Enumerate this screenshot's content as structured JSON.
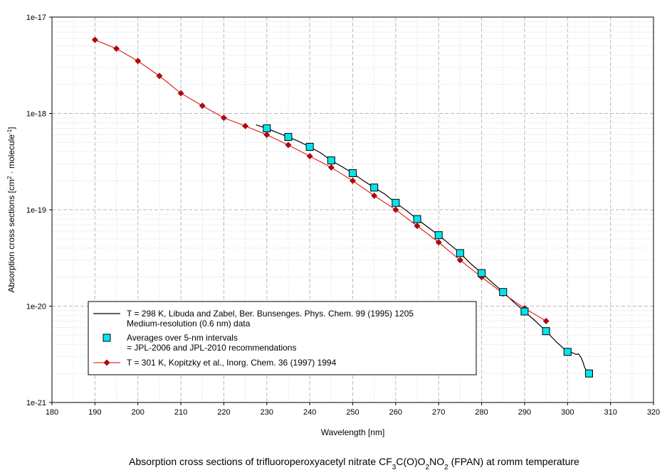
{
  "chart_data": {
    "type": "line",
    "caption_parts": [
      {
        "t": "Absorption cross sections of trifluoroperoxyacetyl nitrate CF",
        "s": ""
      },
      {
        "t": "3",
        "s": "sub"
      },
      {
        "t": "C(O)O",
        "s": ""
      },
      {
        "t": "2",
        "s": "sub"
      },
      {
        "t": "NO",
        "s": ""
      },
      {
        "t": "2",
        "s": "sub"
      },
      {
        "t": " (FPAN) at romm temperature",
        "s": ""
      }
    ],
    "xlabel": "Wavelength [nm]",
    "ylabel_parts": [
      {
        "t": "Absorption cross sections [cm",
        "s": ""
      },
      {
        "t": "2",
        "s": "sup"
      },
      {
        "t": " · molecule",
        "s": ""
      },
      {
        "t": "-1",
        "s": "sup"
      },
      {
        "t": "]",
        "s": ""
      }
    ],
    "xlim": [
      180,
      320
    ],
    "ylim": [
      1e-21,
      1e-17
    ],
    "y_scale": "log",
    "grid": true,
    "x_ticks": [
      180,
      190,
      200,
      210,
      220,
      230,
      240,
      250,
      260,
      270,
      280,
      290,
      300,
      310,
      320
    ],
    "x_tick_labels": [
      "180",
      "190",
      "200",
      "210",
      "220",
      "230",
      "240",
      "250",
      "260",
      "270",
      "280",
      "290",
      "300",
      "310",
      "320"
    ],
    "y_ticks": [
      1e-21,
      1e-20,
      1e-19,
      1e-18,
      1e-17
    ],
    "y_tick_labels": [
      "1e-21",
      "1e-20",
      "1e-19",
      "1e-18",
      "1e-17"
    ],
    "legend_position": "bottom-left",
    "series": [
      {
        "name_lines": [
          "T = 298 K, Libuda and Zabel, Ber. Bunsenges. Phys. Chem. 99 (1995) 1205",
          "Medium-resolution (0.6 nm) data"
        ],
        "style": "line",
        "color": "#000000",
        "x": [
          227.5,
          230,
          232.5,
          235,
          237.5,
          240,
          242.5,
          245,
          247.5,
          250,
          252.5,
          255,
          257.5,
          260,
          262.5,
          265,
          267.5,
          270,
          272.5,
          275,
          277.5,
          280,
          282.5,
          285,
          287.5,
          290,
          292.5,
          295,
          297.5,
          300,
          301,
          302,
          302.5,
          303,
          303.5,
          304,
          304.5,
          305
        ],
        "y": [
          7.6e-19,
          7e-19,
          6.3e-19,
          5.7e-19,
          5.1e-19,
          4.5e-19,
          3.9e-19,
          3.25e-19,
          2.8e-19,
          2.4e-19,
          2e-19,
          1.7e-19,
          1.45e-19,
          1.18e-19,
          9.8e-20,
          8e-20,
          6.6e-20,
          5.45e-20,
          4.4e-20,
          3.55e-20,
          2.75e-20,
          2.2e-20,
          1.75e-20,
          1.4e-20,
          1.1e-20,
          8.8e-21,
          7e-21,
          5.5e-21,
          4.2e-21,
          3.35e-21,
          3.3e-21,
          3.15e-21,
          3.2e-21,
          3e-21,
          2.7e-21,
          2.3e-21,
          2.1e-21,
          2e-21
        ]
      },
      {
        "name_lines": [
          "Averages over 5-nm intervals",
          "= JPL-2006 and JPL-2010 recommendations"
        ],
        "style": "square",
        "color": "#00e5ee",
        "x": [
          230,
          235,
          240,
          245,
          250,
          255,
          260,
          265,
          270,
          275,
          280,
          285,
          290,
          295,
          300,
          305
        ],
        "y": [
          7e-19,
          5.7e-19,
          4.5e-19,
          3.25e-19,
          2.4e-19,
          1.7e-19,
          1.18e-19,
          8e-20,
          5.45e-20,
          3.55e-20,
          2.2e-20,
          1.4e-20,
          8.8e-21,
          5.5e-21,
          3.35e-21,
          2e-21
        ]
      },
      {
        "name_lines": [
          "T = 301 K, Kopitzky et al., Inorg. Chem. 36 (1997) 1994"
        ],
        "style": "line-diamond",
        "color": "#e00000",
        "marker_color": "#c00000",
        "x": [
          190,
          195,
          200,
          205,
          210,
          215,
          220,
          225,
          230,
          235,
          240,
          245,
          250,
          255,
          260,
          265,
          270,
          275,
          280,
          285,
          290,
          295
        ],
        "y": [
          5.8e-18,
          4.7e-18,
          3.5e-18,
          2.45e-18,
          1.62e-18,
          1.2e-18,
          9e-19,
          7.4e-19,
          6e-19,
          4.7e-19,
          3.6e-19,
          2.75e-19,
          2e-19,
          1.4e-19,
          1e-19,
          6.8e-20,
          4.6e-20,
          3e-20,
          2e-20,
          1.35e-20,
          9.5e-21,
          7e-21
        ]
      }
    ]
  }
}
